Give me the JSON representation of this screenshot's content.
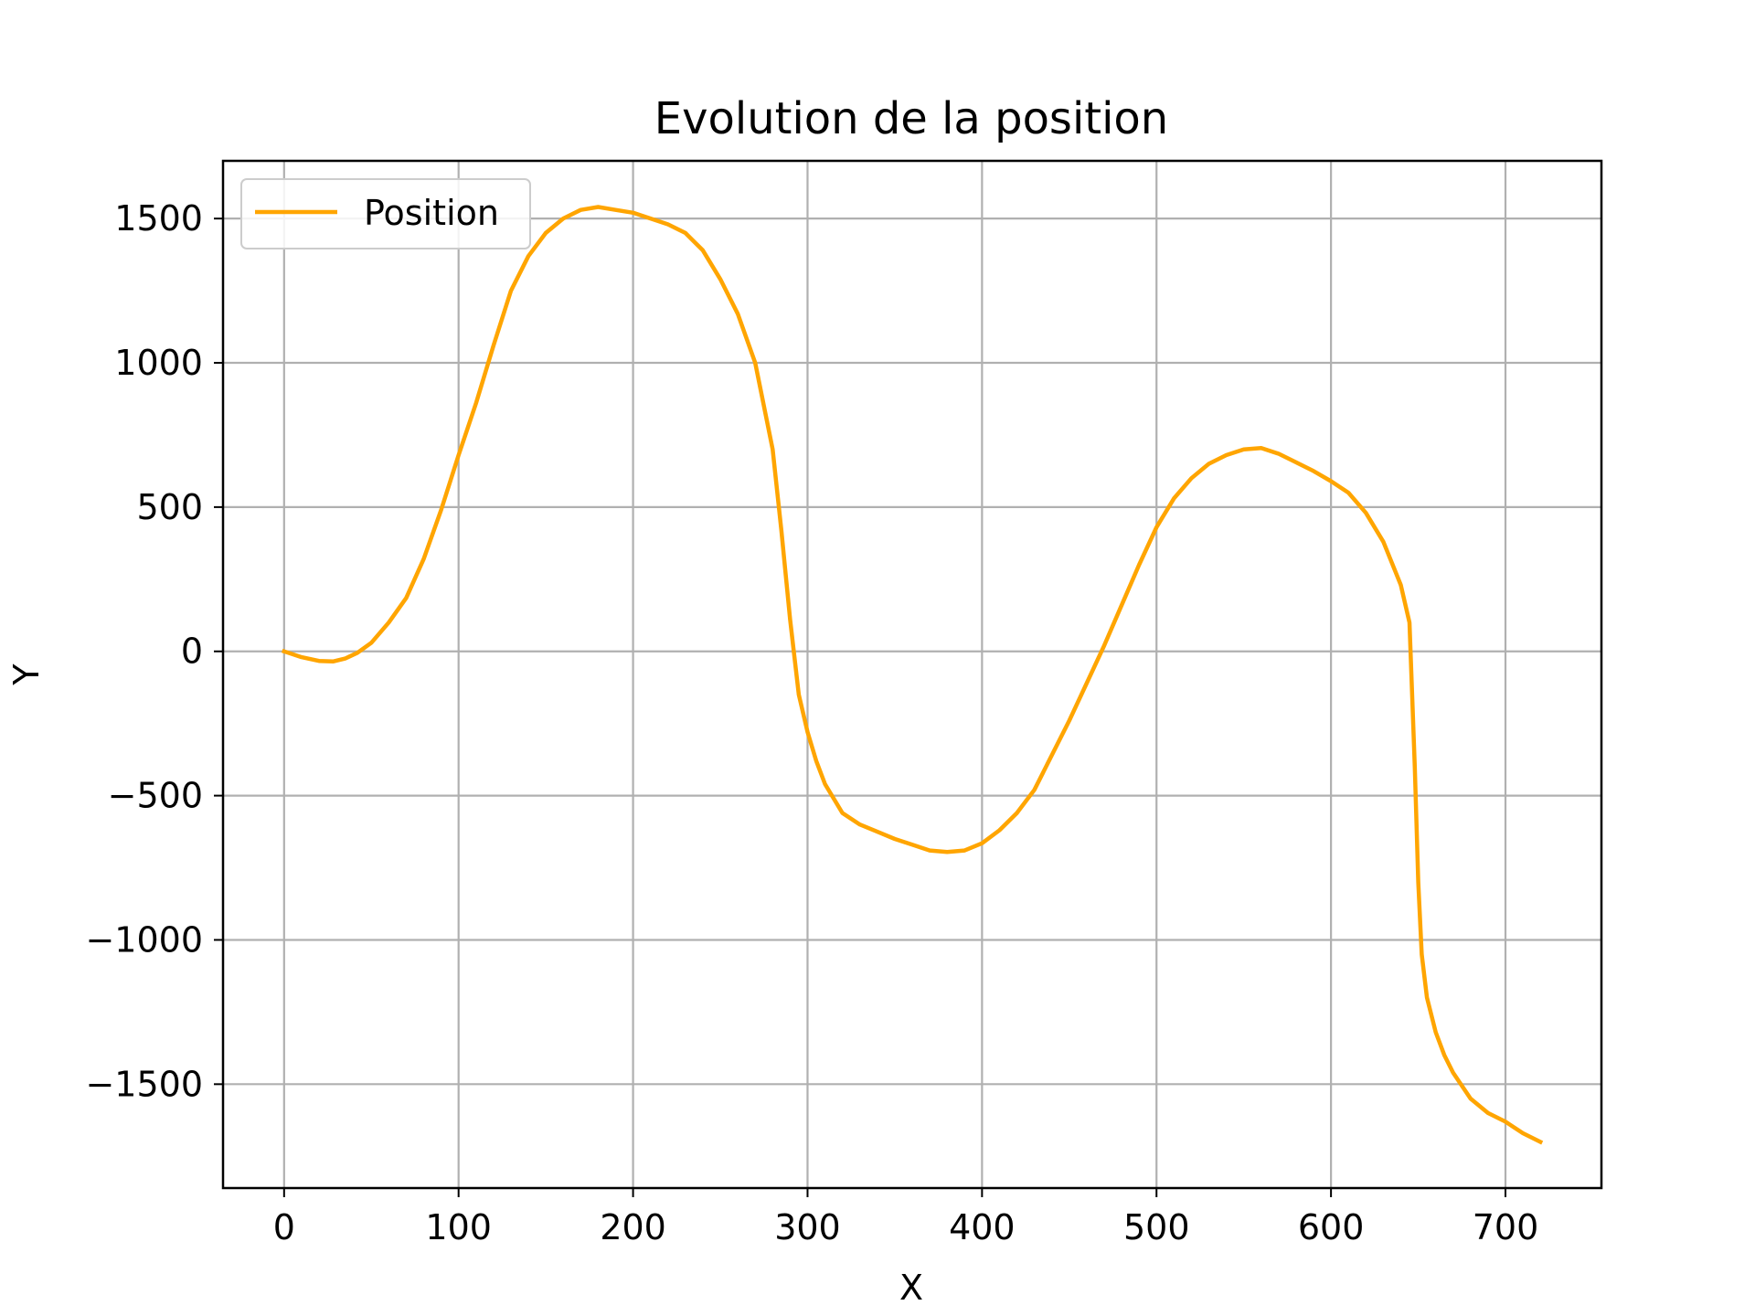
{
  "chart_data": {
    "type": "line",
    "title": "Evolution de la position",
    "xlabel": "X",
    "ylabel": "Y",
    "xlim": [
      -35,
      755
    ],
    "ylim": [
      -1860,
      1700
    ],
    "xticks": [
      0,
      100,
      200,
      300,
      400,
      500,
      600,
      700
    ],
    "yticks": [
      -1500,
      -1000,
      -500,
      0,
      500,
      1000,
      1500
    ],
    "grid": true,
    "legend": "top-left",
    "series": [
      {
        "name": "Position",
        "color": "#ffa500",
        "x": [
          0,
          10,
          20,
          28,
          35,
          42,
          50,
          60,
          70,
          80,
          90,
          100,
          110,
          120,
          130,
          140,
          150,
          160,
          170,
          180,
          190,
          200,
          210,
          220,
          230,
          240,
          250,
          260,
          270,
          280,
          285,
          290,
          295,
          300,
          305,
          310,
          320,
          330,
          340,
          350,
          360,
          370,
          380,
          390,
          400,
          410,
          420,
          430,
          440,
          450,
          460,
          470,
          480,
          490,
          500,
          510,
          520,
          530,
          540,
          550,
          560,
          570,
          580,
          590,
          600,
          610,
          620,
          630,
          640,
          645,
          648,
          650,
          652,
          655,
          660,
          665,
          670,
          680,
          690,
          700,
          710,
          720
        ],
        "y": [
          0,
          -20,
          -33,
          -35,
          -25,
          -5,
          30,
          100,
          185,
          320,
          490,
          680,
          860,
          1060,
          1250,
          1370,
          1450,
          1500,
          1530,
          1540,
          1530,
          1520,
          1500,
          1480,
          1450,
          1390,
          1290,
          1170,
          1000,
          700,
          420,
          110,
          -150,
          -280,
          -380,
          -460,
          -560,
          -600,
          -625,
          -650,
          -670,
          -690,
          -695,
          -690,
          -665,
          -620,
          -560,
          -480,
          -360,
          -240,
          -110,
          20,
          160,
          300,
          430,
          530,
          600,
          650,
          680,
          700,
          705,
          685,
          655,
          625,
          590,
          550,
          480,
          380,
          230,
          100,
          -400,
          -800,
          -1050,
          -1200,
          -1320,
          -1400,
          -1460,
          -1550,
          -1600,
          -1630,
          -1670,
          -1700
        ]
      }
    ]
  }
}
